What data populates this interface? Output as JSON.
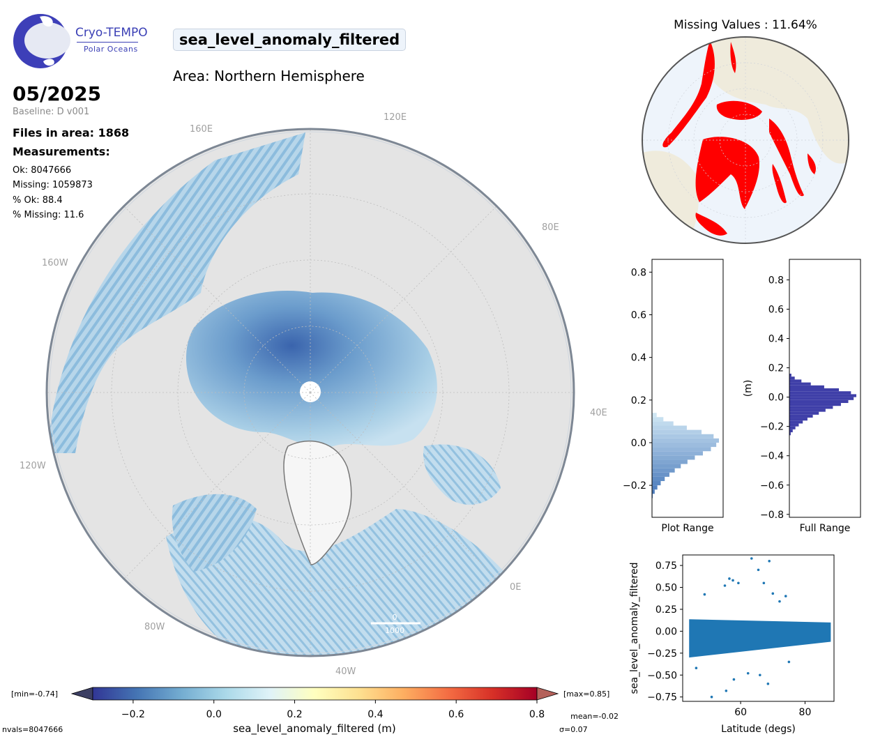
{
  "header": {
    "variable": "sea_level_anomaly_filtered",
    "area": "Area: Northern Hemisphere",
    "period": "05/2025",
    "baseline": "Baseline: D v001",
    "files": "Files in area: 1868",
    "measurements_title": "Measurements:",
    "stats": [
      "Ok: 8047666",
      "Missing: 1059873",
      "% Ok: 88.4",
      "% Missing: 11.6"
    ]
  },
  "logo": {
    "name": "Cryo-TEMPO",
    "subtitle": "Polar Oceans"
  },
  "map": {
    "lon_labels": {
      "l160e": "160E",
      "l120e": "120E",
      "l80e": "80E",
      "l40e": "40E",
      "l0e": "0E",
      "l40w": "40W",
      "l80w": "80W",
      "l120w": "120W",
      "l160w": "160W"
    },
    "scalebar": {
      "top": "0",
      "bottom": "1000"
    },
    "colors": {
      "ocean_light": "#bcdaec",
      "ocean_mid": "#8fbfde",
      "ocean_dark": "#3d6fb6",
      "land": "#e6e6e6",
      "greenland": "#f6f6f6"
    }
  },
  "colorbar": {
    "label": "sea_level_anomaly_filtered (m)",
    "min_label": "[min=-0.74]",
    "max_label": "[max=0.85]",
    "mean_label": "mean=-0.02",
    "sigma_label": "σ=0.07",
    "nvals_label": "nvals=8047666",
    "ticks": [
      "−0.2",
      "0.0",
      "0.2",
      "0.4",
      "0.6",
      "0.8"
    ],
    "tick_values": [
      -0.2,
      0.0,
      0.2,
      0.4,
      0.6,
      0.8
    ],
    "range": [
      -0.3,
      0.8
    ],
    "colors": [
      "#313695",
      "#4575b4",
      "#74add1",
      "#abd9e9",
      "#e0f3f8",
      "#ffffbf",
      "#fee090",
      "#fdae61",
      "#f46d43",
      "#d73027",
      "#a50026"
    ]
  },
  "missing": {
    "title": "Missing Values : 11.64%",
    "colors": {
      "missing": "#ff0000",
      "ocean": "#eef4fb",
      "land": "#efebdc"
    }
  },
  "chart_data": [
    {
      "type": "bar",
      "orientation": "horizontal",
      "xlabel": "Plot Range",
      "ylabel": "",
      "ylim": [
        -0.35,
        0.86
      ],
      "yticks": [
        "0.8",
        "0.6",
        "0.4",
        "0.2",
        "0.0",
        "−0.2"
      ],
      "ytick_values": [
        0.8,
        0.6,
        0.4,
        0.2,
        0.0,
        -0.2
      ],
      "bins": [
        -0.26,
        -0.24,
        -0.22,
        -0.2,
        -0.18,
        -0.16,
        -0.14,
        -0.12,
        -0.1,
        -0.08,
        -0.06,
        -0.04,
        -0.02,
        0.0,
        0.02,
        0.04,
        0.06,
        0.08,
        0.1,
        0.12
      ],
      "values": [
        0.01,
        0.04,
        0.08,
        0.13,
        0.19,
        0.26,
        0.34,
        0.43,
        0.53,
        0.64,
        0.76,
        0.88,
        0.96,
        1.0,
        0.92,
        0.74,
        0.52,
        0.32,
        0.17,
        0.07
      ]
    },
    {
      "type": "bar",
      "orientation": "horizontal",
      "xlabel": "Full Range",
      "ylabel": "(m)",
      "ylim": [
        -0.82,
        0.94
      ],
      "yticks": [
        "0.8",
        "0.6",
        "0.4",
        "0.2",
        "0.0",
        "−0.2",
        "−0.4",
        "−0.6",
        "−0.8"
      ],
      "ytick_values": [
        0.8,
        0.6,
        0.4,
        0.2,
        0.0,
        -0.2,
        -0.4,
        -0.6,
        -0.8
      ],
      "bins": [
        -0.26,
        -0.24,
        -0.22,
        -0.2,
        -0.18,
        -0.16,
        -0.14,
        -0.12,
        -0.1,
        -0.08,
        -0.06,
        -0.04,
        -0.02,
        0.0,
        0.02,
        0.04,
        0.06,
        0.08,
        0.1,
        0.12,
        0.14
      ],
      "values": [
        0.02,
        0.05,
        0.09,
        0.14,
        0.2,
        0.27,
        0.35,
        0.44,
        0.54,
        0.65,
        0.77,
        0.88,
        0.96,
        1.0,
        0.92,
        0.74,
        0.52,
        0.32,
        0.18,
        0.08,
        0.03
      ]
    },
    {
      "type": "scatter",
      "xlabel": "Latitude (degs)",
      "ylabel": "sea_level_anomaly_filtered",
      "xlim": [
        42,
        89
      ],
      "ylim": [
        -0.8,
        0.87
      ],
      "xticks": [
        "60",
        "80"
      ],
      "xtick_values": [
        60,
        80
      ],
      "yticks": [
        "0.75",
        "0.50",
        "0.25",
        "0.00",
        "−0.25",
        "−0.50",
        "−0.75"
      ],
      "ytick_values": [
        0.75,
        0.5,
        0.25,
        0.0,
        -0.25,
        -0.5,
        -0.75
      ],
      "color": "#1f77b4",
      "band": {
        "x": [
          44,
          88
        ],
        "low": -0.3,
        "high": 0.2
      },
      "outliers": [
        [
          48.8,
          0.42
        ],
        [
          55.1,
          0.52
        ],
        [
          56.5,
          0.6
        ],
        [
          57.6,
          0.58
        ],
        [
          59.3,
          0.55
        ],
        [
          63.4,
          0.83
        ],
        [
          65.5,
          0.7
        ],
        [
          67.2,
          0.55
        ],
        [
          68.9,
          0.8
        ],
        [
          70.0,
          0.43
        ],
        [
          72.1,
          0.34
        ],
        [
          74.0,
          0.4
        ],
        [
          46.2,
          -0.42
        ],
        [
          51.0,
          -0.75
        ],
        [
          55.5,
          -0.68
        ],
        [
          57.9,
          -0.55
        ],
        [
          62.3,
          -0.48
        ],
        [
          66.0,
          -0.5
        ],
        [
          68.5,
          -0.6
        ],
        [
          75.0,
          -0.35
        ]
      ]
    }
  ]
}
